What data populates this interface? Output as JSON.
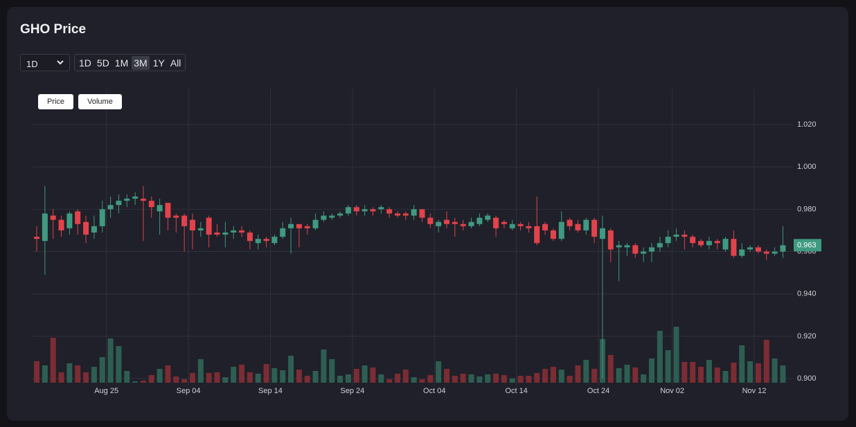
{
  "chart_data": {
    "type": "candlestick",
    "title": "GHO Price",
    "interval": "1D",
    "ranges": [
      "1D",
      "5D",
      "1M",
      "3M",
      "1Y",
      "All"
    ],
    "active_range": "3M",
    "series_names": [
      "Price",
      "Volume"
    ],
    "up_color": "#3f9a80",
    "down_color": "#e2434b",
    "volume_up_color": "#2e5e52",
    "volume_down_color": "#7c2c33",
    "grid": true,
    "categories": [
      "Aug 16",
      "Aug 17",
      "Aug 18",
      "Aug 19",
      "Aug 20",
      "Aug 21",
      "Aug 22",
      "Aug 23",
      "Aug 24",
      "Aug 25",
      "Aug 26",
      "Aug 27",
      "Aug 28",
      "Aug 29",
      "Aug 30",
      "Aug 31",
      "Sep 01",
      "Sep 02",
      "Sep 03",
      "Sep 04",
      "Sep 05",
      "Sep 06",
      "Sep 07",
      "Sep 08",
      "Sep 09",
      "Sep 10",
      "Sep 11",
      "Sep 12",
      "Sep 13",
      "Sep 14",
      "Sep 15",
      "Sep 16",
      "Sep 17",
      "Sep 18",
      "Sep 19",
      "Sep 20",
      "Sep 21",
      "Sep 22",
      "Sep 23",
      "Sep 24",
      "Sep 25",
      "Sep 26",
      "Sep 27",
      "Sep 28",
      "Sep 29",
      "Sep 30",
      "Oct 01",
      "Oct 02",
      "Oct 03",
      "Oct 04",
      "Oct 05",
      "Oct 06",
      "Oct 07",
      "Oct 08",
      "Oct 09",
      "Oct 10",
      "Oct 11",
      "Oct 12",
      "Oct 13",
      "Oct 14",
      "Oct 15",
      "Oct 16",
      "Oct 17",
      "Oct 18",
      "Oct 19",
      "Oct 20",
      "Oct 21",
      "Oct 22",
      "Oct 23",
      "Oct 24",
      "Oct 25",
      "Oct 26",
      "Oct 27",
      "Oct 28",
      "Oct 29",
      "Oct 30",
      "Oct 31",
      "Nov 01",
      "Nov 02",
      "Nov 03",
      "Nov 04",
      "Nov 05",
      "Nov 06",
      "Nov 07",
      "Nov 08",
      "Nov 09",
      "Nov 10",
      "Nov 11",
      "Nov 12",
      "Nov 13",
      "Nov 14",
      "Nov 15"
    ],
    "open": [
      0.967,
      0.965,
      0.977,
      0.975,
      0.971,
      0.979,
      0.974,
      0.969,
      0.972,
      0.98,
      0.982,
      0.984,
      0.985,
      0.985,
      0.984,
      0.979,
      0.983,
      0.977,
      0.977,
      0.975,
      0.97,
      0.976,
      0.969,
      0.968,
      0.969,
      0.97,
      0.969,
      0.964,
      0.966,
      0.964,
      0.967,
      0.971,
      0.973,
      0.972,
      0.971,
      0.975,
      0.976,
      0.977,
      0.978,
      0.981,
      0.979,
      0.98,
      0.98,
      0.98,
      0.978,
      0.978,
      0.977,
      0.98,
      0.976,
      0.972,
      0.975,
      0.974,
      0.973,
      0.972,
      0.973,
      0.975,
      0.976,
      0.974,
      0.971,
      0.973,
      0.972,
      0.972,
      0.973,
      0.97,
      0.966,
      0.975,
      0.973,
      0.97,
      0.975,
      0.966,
      0.97,
      0.962,
      0.962,
      0.963,
      0.959,
      0.96,
      0.962,
      0.964,
      0.967,
      0.968,
      0.967,
      0.965,
      0.963,
      0.965,
      0.961,
      0.966,
      0.958,
      0.961,
      0.962,
      0.96,
      0.959,
      0.96
    ],
    "high": [
      0.972,
      0.991,
      0.98,
      0.977,
      0.979,
      0.98,
      0.977,
      0.977,
      0.984,
      0.986,
      0.987,
      0.987,
      0.988,
      0.991,
      0.986,
      0.985,
      0.983,
      0.978,
      0.978,
      0.978,
      0.974,
      0.977,
      0.973,
      0.974,
      0.972,
      0.972,
      0.97,
      0.968,
      0.967,
      0.968,
      0.974,
      0.976,
      0.973,
      0.973,
      0.978,
      0.979,
      0.978,
      0.979,
      0.982,
      0.982,
      0.982,
      0.981,
      0.982,
      0.981,
      0.979,
      0.979,
      0.982,
      0.98,
      0.978,
      0.975,
      0.979,
      0.976,
      0.975,
      0.976,
      0.978,
      0.978,
      0.977,
      0.975,
      0.975,
      0.974,
      0.974,
      0.986,
      0.974,
      0.971,
      0.979,
      0.976,
      0.975,
      0.976,
      0.976,
      0.977,
      0.971,
      0.965,
      0.964,
      0.964,
      0.962,
      0.964,
      0.967,
      0.97,
      0.971,
      0.97,
      0.968,
      0.966,
      0.967,
      0.966,
      0.967,
      0.97,
      0.964,
      0.963,
      0.963,
      0.961,
      0.962,
      0.972
    ],
    "low": [
      0.96,
      0.949,
      0.966,
      0.967,
      0.968,
      0.968,
      0.964,
      0.966,
      0.969,
      0.976,
      0.978,
      0.981,
      0.982,
      0.965,
      0.976,
      0.968,
      0.97,
      0.969,
      0.96,
      0.961,
      0.967,
      0.962,
      0.967,
      0.962,
      0.966,
      0.967,
      0.961,
      0.961,
      0.962,
      0.963,
      0.966,
      0.959,
      0.962,
      0.968,
      0.97,
      0.974,
      0.975,
      0.976,
      0.977,
      0.977,
      0.977,
      0.977,
      0.978,
      0.976,
      0.976,
      0.975,
      0.975,
      0.974,
      0.971,
      0.969,
      0.971,
      0.967,
      0.97,
      0.971,
      0.972,
      0.974,
      0.967,
      0.971,
      0.97,
      0.97,
      0.969,
      0.963,
      0.968,
      0.965,
      0.965,
      0.97,
      0.969,
      0.968,
      0.964,
      0.9,
      0.955,
      0.946,
      0.958,
      0.957,
      0.955,
      0.955,
      0.96,
      0.962,
      0.965,
      0.961,
      0.962,
      0.962,
      0.961,
      0.961,
      0.96,
      0.957,
      0.957,
      0.96,
      0.959,
      0.956,
      0.958,
      0.957
    ],
    "close": [
      0.966,
      0.978,
      0.975,
      0.97,
      0.978,
      0.973,
      0.968,
      0.972,
      0.98,
      0.982,
      0.984,
      0.985,
      0.986,
      0.984,
      0.981,
      0.982,
      0.976,
      0.976,
      0.972,
      0.97,
      0.971,
      0.968,
      0.968,
      0.969,
      0.97,
      0.969,
      0.965,
      0.966,
      0.965,
      0.967,
      0.971,
      0.973,
      0.971,
      0.971,
      0.975,
      0.977,
      0.977,
      0.978,
      0.981,
      0.979,
      0.98,
      0.979,
      0.981,
      0.978,
      0.977,
      0.977,
      0.98,
      0.976,
      0.973,
      0.974,
      0.973,
      0.973,
      0.972,
      0.974,
      0.976,
      0.977,
      0.971,
      0.973,
      0.973,
      0.972,
      0.971,
      0.964,
      0.97,
      0.966,
      0.974,
      0.972,
      0.97,
      0.975,
      0.967,
      0.971,
      0.961,
      0.963,
      0.963,
      0.959,
      0.96,
      0.962,
      0.964,
      0.967,
      0.968,
      0.967,
      0.964,
      0.963,
      0.965,
      0.964,
      0.966,
      0.958,
      0.961,
      0.962,
      0.96,
      0.959,
      0.96,
      0.963
    ],
    "volume": [
      31,
      25,
      65,
      15,
      28,
      25,
      15,
      23,
      37,
      64,
      53,
      17,
      2,
      3,
      11,
      20,
      25,
      9,
      5,
      14,
      34,
      14,
      15,
      8,
      23,
      26,
      15,
      13,
      27,
      21,
      18,
      39,
      19,
      10,
      17,
      48,
      34,
      10,
      12,
      20,
      25,
      22,
      12,
      5,
      13,
      19,
      8,
      5,
      11,
      31,
      20,
      10,
      13,
      12,
      9,
      12,
      13,
      11,
      6,
      10,
      10,
      14,
      20,
      23,
      19,
      10,
      25,
      33,
      20,
      63,
      40,
      21,
      26,
      22,
      12,
      35,
      75,
      47,
      81,
      30,
      30,
      23,
      33,
      22,
      17,
      29,
      54,
      31,
      28,
      62,
      35,
      25
    ],
    "xticks": [
      "Aug 25",
      "Sep 04",
      "Sep 14",
      "Sep 24",
      "Oct 04",
      "Oct 14",
      "Oct 24",
      "Nov 02",
      "Nov 12"
    ],
    "ylim": [
      0.8974,
      1.037
    ],
    "yticks": [
      {
        "value": 0.9,
        "label": "0.900"
      },
      {
        "value": 0.92,
        "label": "0.920"
      },
      {
        "value": 0.94,
        "label": "0.940"
      },
      {
        "value": 0.96,
        "label": "0.960"
      },
      {
        "value": 0.98,
        "label": "0.980"
      },
      {
        "value": 1.0,
        "label": "1.000"
      },
      {
        "value": 1.02,
        "label": "1.020"
      }
    ]
  }
}
